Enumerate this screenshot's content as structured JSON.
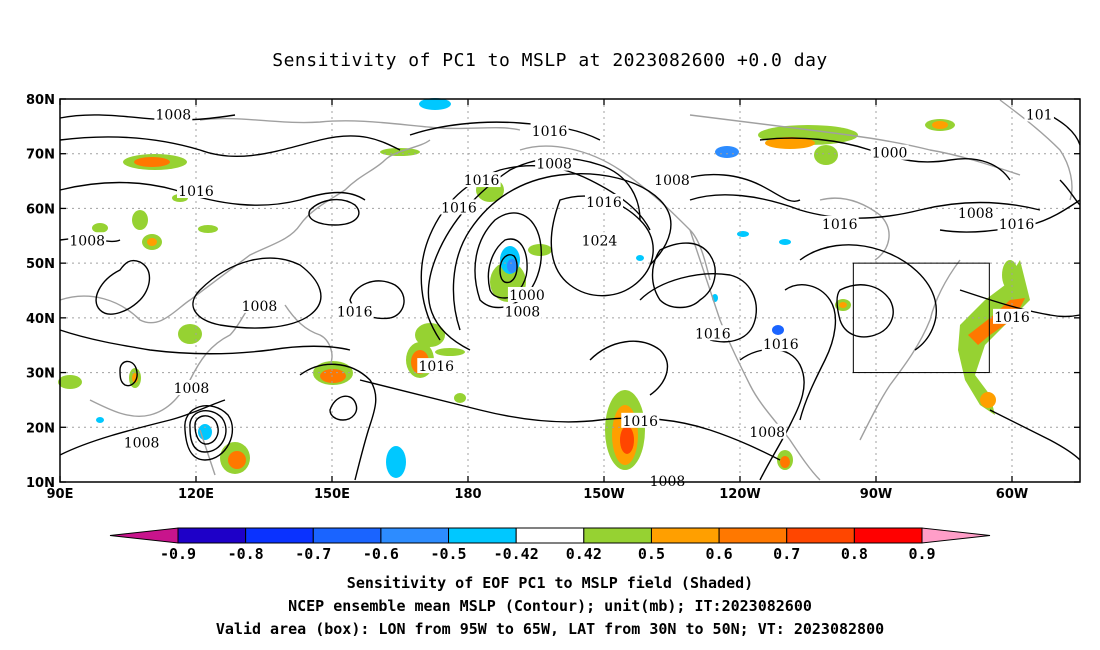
{
  "title": "Sensitivity of PC1 to MSLP at 2023082600 +0.0 day",
  "map": {
    "lat_ticks": [
      "80N",
      "70N",
      "60N",
      "50N",
      "40N",
      "30N",
      "20N",
      "10N"
    ],
    "lon_ticks": [
      "90E",
      "120E",
      "150E",
      "180",
      "150W",
      "120W",
      "90W",
      "60W"
    ],
    "contour_labels": [
      {
        "text": "1008",
        "lon": 115,
        "lat": 77
      },
      {
        "text": "1016",
        "lon": 198,
        "lat": 74
      },
      {
        "text": "1000",
        "lon": 273,
        "lat": 70
      },
      {
        "text": "1008",
        "lon": 199,
        "lat": 68
      },
      {
        "text": "1016",
        "lon": 183,
        "lat": 65
      },
      {
        "text": "1008",
        "lon": 225,
        "lat": 65
      },
      {
        "text": "1016",
        "lon": 120,
        "lat": 63
      },
      {
        "text": "1016",
        "lon": 178,
        "lat": 60
      },
      {
        "text": "1016",
        "lon": 210,
        "lat": 61
      },
      {
        "text": "1008",
        "lon": 292,
        "lat": 59
      },
      {
        "text": "1016",
        "lon": 301,
        "lat": 57
      },
      {
        "text": "1016",
        "lon": 262,
        "lat": 57
      },
      {
        "text": "1008",
        "lon": 96,
        "lat": 54
      },
      {
        "text": "1024",
        "lon": 209,
        "lat": 54
      },
      {
        "text": "1000",
        "lon": 193,
        "lat": 44
      },
      {
        "text": "1008",
        "lon": 192,
        "lat": 41
      },
      {
        "text": "1008",
        "lon": 134,
        "lat": 42
      },
      {
        "text": "1016",
        "lon": 155,
        "lat": 41
      },
      {
        "text": "1016",
        "lon": 234,
        "lat": 37
      },
      {
        "text": "1016",
        "lon": 249,
        "lat": 35
      },
      {
        "text": "1016",
        "lon": 300,
        "lat": 40
      },
      {
        "text": "1016",
        "lon": 173,
        "lat": 31
      },
      {
        "text": "1008",
        "lon": 119,
        "lat": 27
      },
      {
        "text": "1016",
        "lon": 218,
        "lat": 21
      },
      {
        "text": "1008",
        "lon": 108,
        "lat": 17
      },
      {
        "text": "1008",
        "lon": 246,
        "lat": 19
      },
      {
        "text": "1008",
        "lon": 224,
        "lat": 10
      },
      {
        "text": "101",
        "lon": 306,
        "lat": 77
      }
    ],
    "validity_box": {
      "lon_min": 265,
      "lon_max": 295,
      "lat_min": 30,
      "lat_max": 50
    }
  },
  "colorbar": {
    "labels": [
      "-0.9",
      "-0.8",
      "-0.7",
      "-0.6",
      "-0.5",
      "-0.42",
      "0.42",
      "0.5",
      "0.6",
      "0.7",
      "0.8",
      "0.9"
    ],
    "colors": [
      "#1e00c8",
      "#0a32ff",
      "#1a64ff",
      "#2d8cff",
      "#00c8ff",
      "#ffffff",
      "#96d232",
      "#ff9f00",
      "#ff7800",
      "#ff4600",
      "#ff0000"
    ],
    "under_color": "#c8148c",
    "over_color": "#ff9ec8"
  },
  "captions": [
    "Sensitivity of EOF PC1 to MSLP field (Shaded)",
    "NCEP ensemble mean MSLP (Contour); unit(mb); IT:2023082600",
    "Valid area (box): LON from 95W to 65W, LAT from 30N to 50N; VT: 2023082800"
  ]
}
